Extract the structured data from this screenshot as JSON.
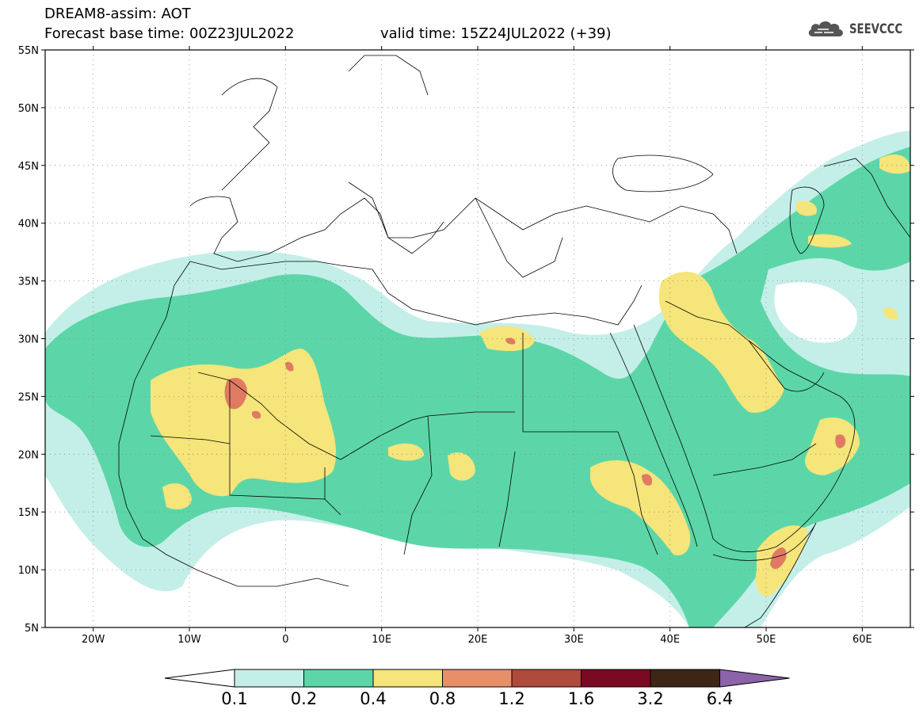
{
  "header": {
    "title": "DREAM8-assim: AOT",
    "base_time": "Forecast base time: 00Z23JUL2022",
    "valid_time": "valid time: 15Z24JUL2022 (+39)"
  },
  "logo": {
    "text": "SEEVCCC",
    "icon": "cloud-icon"
  },
  "axes": {
    "lat_labels": [
      "55N",
      "50N",
      "45N",
      "40N",
      "35N",
      "30N",
      "25N",
      "20N",
      "15N",
      "10N",
      "5N"
    ],
    "lat_values": [
      55,
      50,
      45,
      40,
      35,
      30,
      25,
      20,
      15,
      10,
      5
    ],
    "lon_labels": [
      "20W",
      "10W",
      "0",
      "10E",
      "20E",
      "30E",
      "40E",
      "50E",
      "60E"
    ],
    "lon_values": [
      -20,
      -10,
      0,
      10,
      20,
      30,
      40,
      50,
      60
    ],
    "lon_range": [
      -25,
      65
    ],
    "lat_range": [
      5,
      55
    ],
    "gridlines": "dotted"
  },
  "colorbar": {
    "labels": [
      "0.1",
      "0.2",
      "0.4",
      "0.8",
      "1.2",
      "1.6",
      "3.2",
      "6.4"
    ],
    "colors": [
      "#ffffff",
      "#c4efe8",
      "#5cd6a8",
      "#f5e57a",
      "#e88f6a",
      "#b04a3c",
      "#7a0a24",
      "#3d2616",
      "#8a63a8"
    ]
  },
  "fields": {
    "variable": "AOT",
    "levels": [
      "0.1",
      "0.2",
      "0.4",
      "0.8",
      "1.2"
    ]
  }
}
